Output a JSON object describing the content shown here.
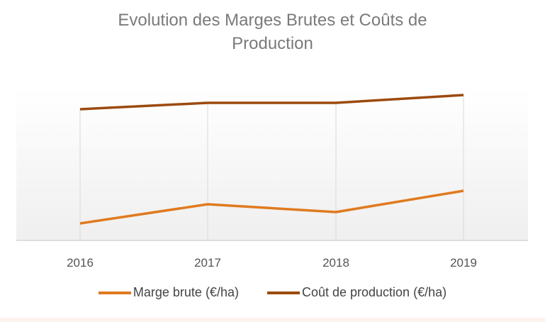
{
  "chart_data": {
    "type": "line",
    "title": "Evolution des Marges Brutes et Coûts de Production",
    "title_lines": [
      "Evolution des Marges Brutes et Coûts de",
      "Production"
    ],
    "categories": [
      "2016",
      "2017",
      "2018",
      "2019"
    ],
    "series": [
      {
        "name": "Marge brute (€/ha)",
        "color": "#e07a1f",
        "values": [
          24,
          51,
          40,
          70
        ]
      },
      {
        "name": "Coût de production (€/ha)",
        "color": "#9c4a0e",
        "values": [
          185,
          194,
          194,
          205
        ]
      }
    ],
    "ylim": [
      0,
      210
    ],
    "y_axis_shown": false,
    "grid": "vertical",
    "legend": "bottom",
    "note": "values in relative units; no y-axis scale printed"
  }
}
